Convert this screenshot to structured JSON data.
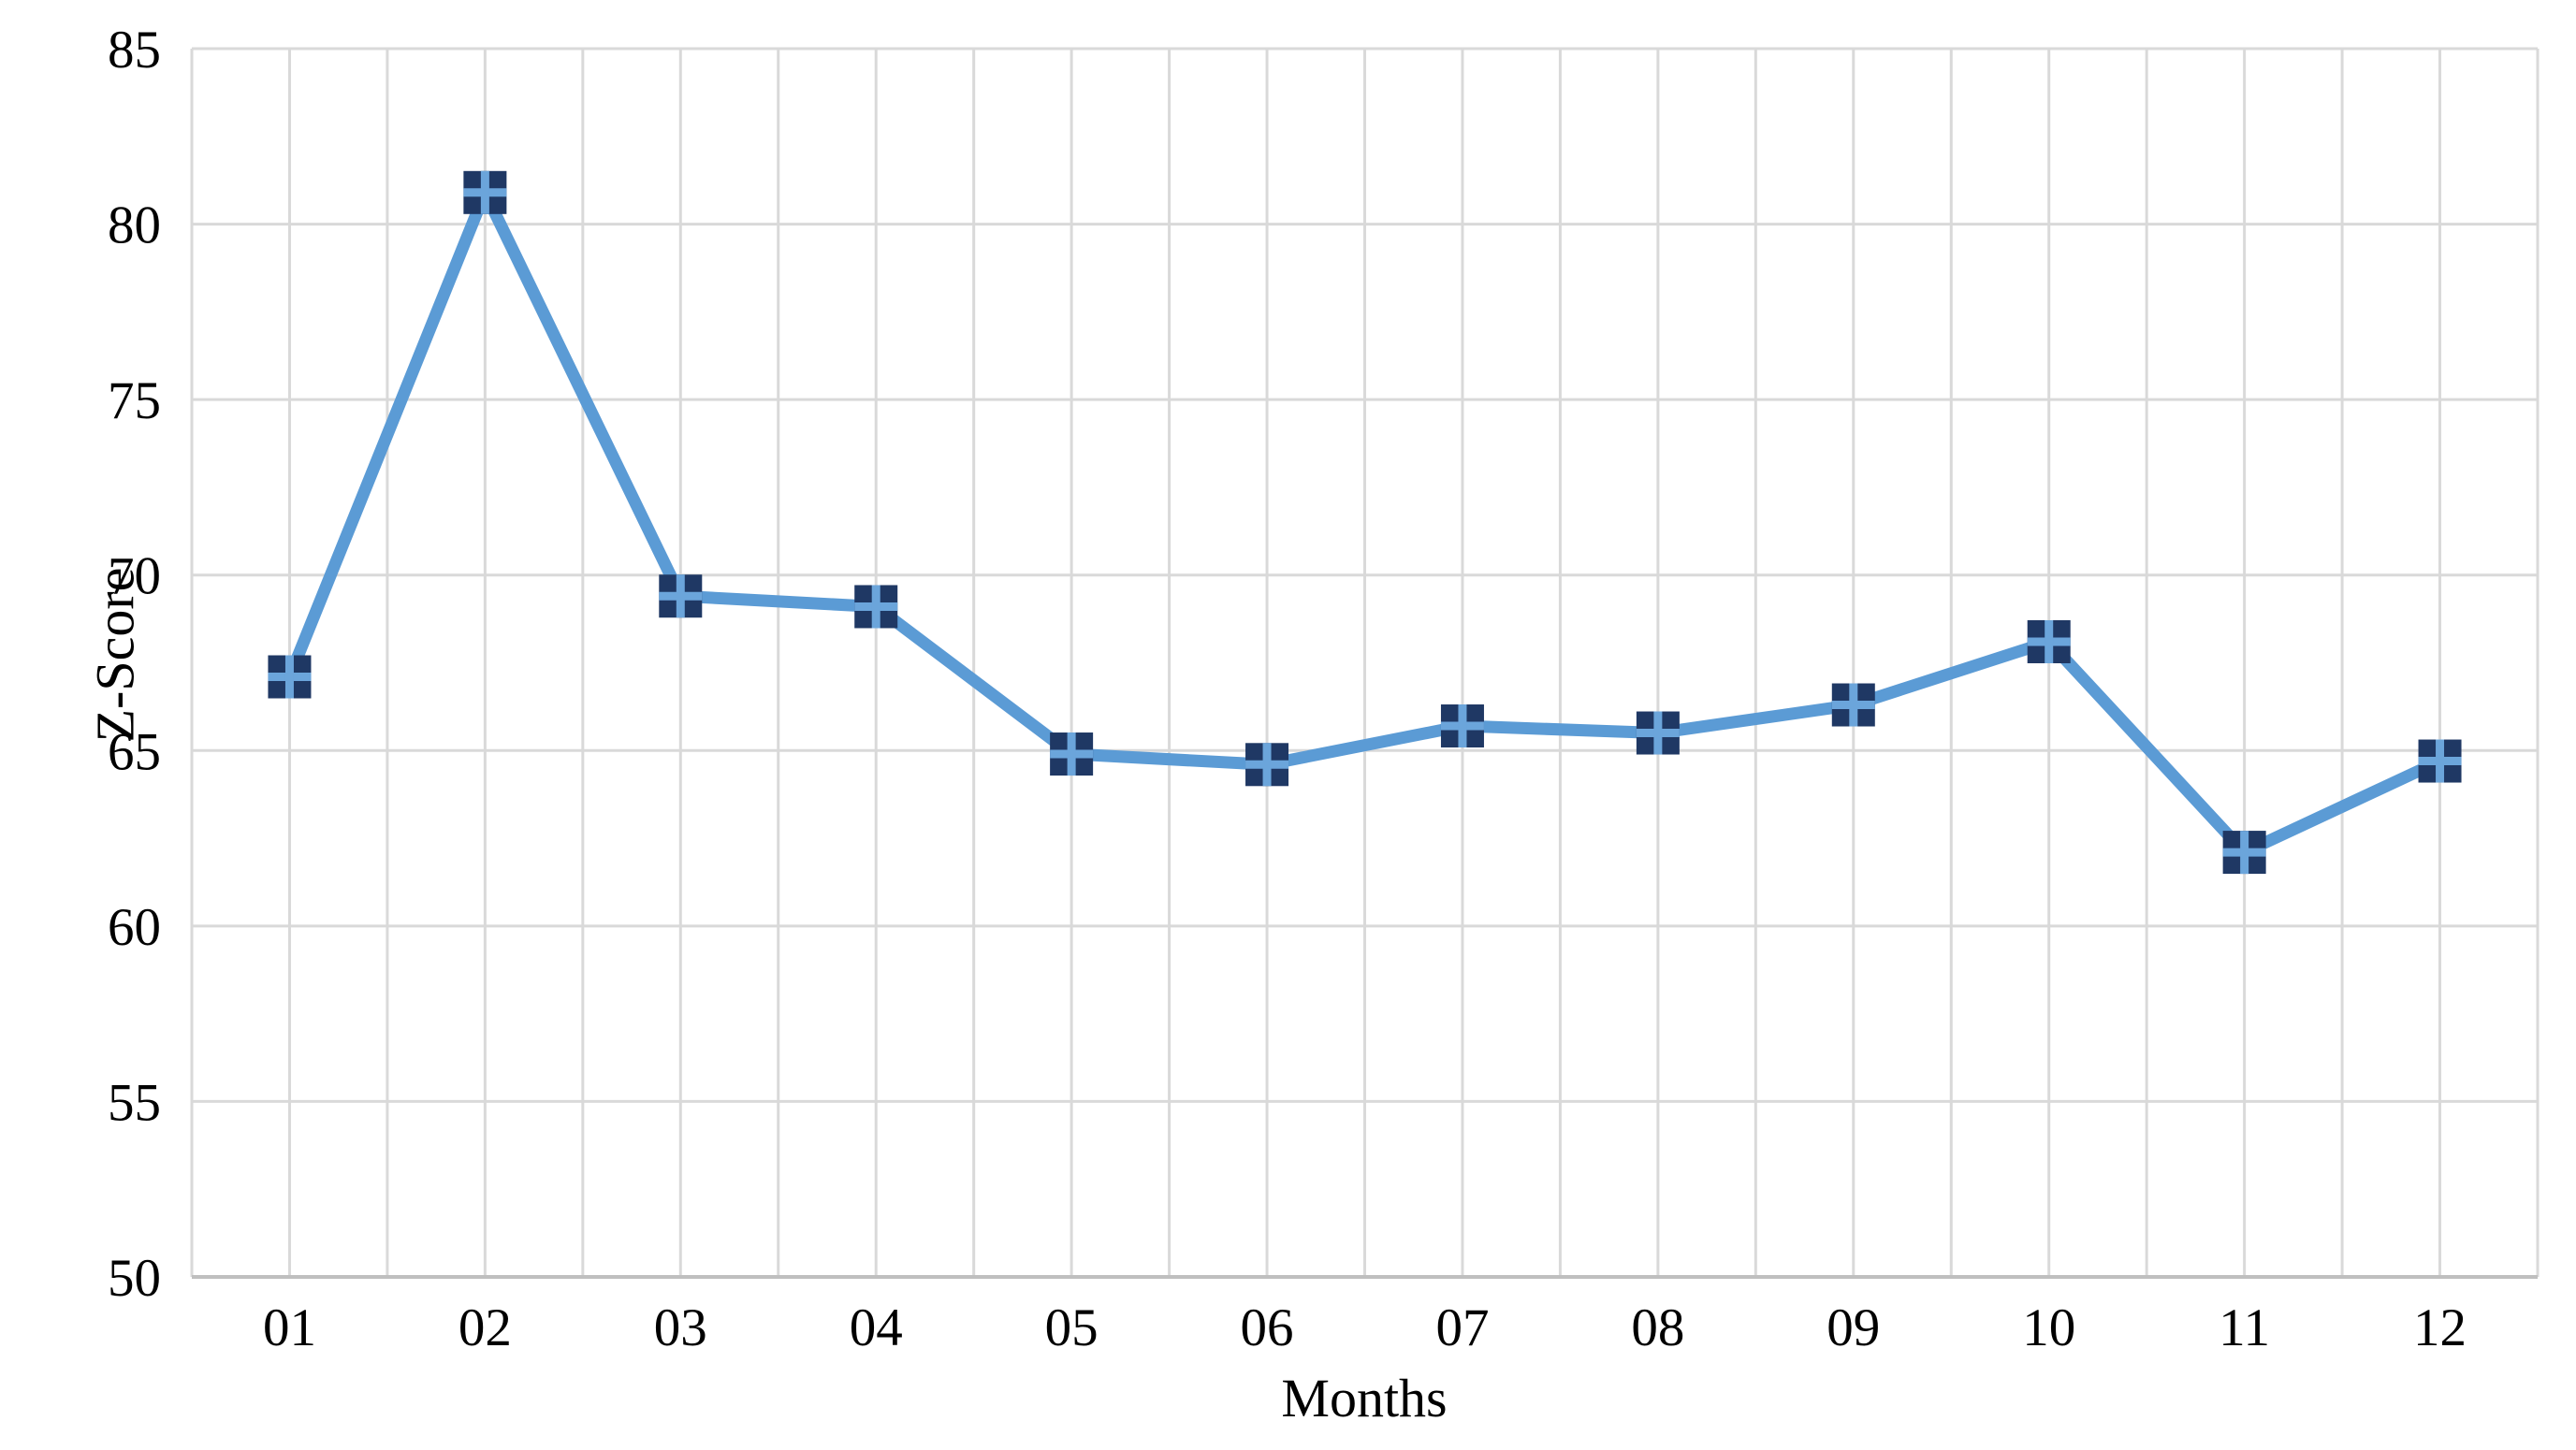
{
  "chart_data": {
    "type": "line",
    "title": "",
    "xlabel": "Months",
    "ylabel": "Z-Score",
    "categories": [
      "01",
      "02",
      "03",
      "04",
      "05",
      "06",
      "07",
      "08",
      "09",
      "10",
      "11",
      "12"
    ],
    "series": [
      {
        "name": "Z-Score",
        "values": [
          67.1,
          80.9,
          69.4,
          69.1,
          64.9,
          64.6,
          65.7,
          65.5,
          66.3,
          68.1,
          62.1,
          64.7
        ]
      }
    ],
    "ylim": [
      50,
      85
    ],
    "yticks": [
      50,
      55,
      60,
      65,
      70,
      75,
      80,
      85
    ],
    "grid": "both",
    "legend": "none",
    "marker_style": "filled-square-with-cross",
    "colors": {
      "line": "#5b9bd5",
      "marker": "#1f3864",
      "marker_cross": "#6ba5db",
      "gridline": "#d9d9d9",
      "axis_line": "#bfbfbf",
      "text": "#000000",
      "background": "#ffffff"
    }
  }
}
